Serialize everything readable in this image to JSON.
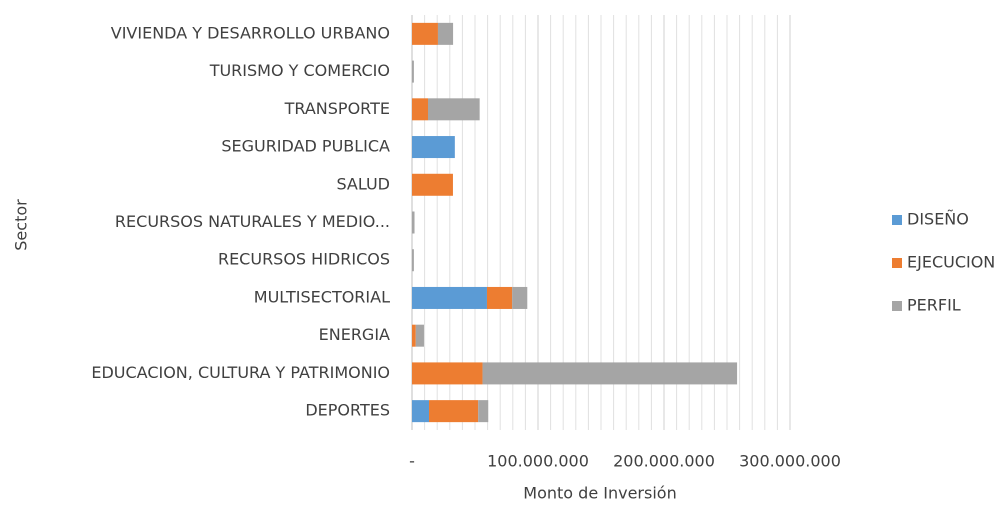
{
  "chart_data": {
    "type": "bar",
    "orientation": "horizontal",
    "stacked": true,
    "xlabel": "Monto de Inversión",
    "ylabel": "Sector",
    "categories": [
      "VIVIENDA Y DESARROLLO URBANO",
      "TURISMO Y COMERCIO",
      "TRANSPORTE",
      "SEGURIDAD PUBLICA",
      "SALUD",
      "RECURSOS NATURALES Y MEDIO...",
      "RECURSOS HIDRICOS",
      "MULTISECTORIAL",
      "ENERGIA",
      "EDUCACION, CULTURA Y PATRIMONIO",
      "DEPORTES"
    ],
    "series": [
      {
        "name": "DISEÑO",
        "color": "#5b9bd5",
        "values": [
          0,
          0,
          0,
          34000000,
          0,
          0,
          0,
          59500000,
          0,
          0,
          13500000
        ]
      },
      {
        "name": "EJECUCION",
        "color": "#ed7d31",
        "values": [
          20600000,
          0,
          12700000,
          0,
          32500000,
          0,
          0,
          20000000,
          3000000,
          56000000,
          39000000
        ]
      },
      {
        "name": "PERFIL",
        "color": "#a5a5a5",
        "values": [
          12000000,
          1500000,
          41000000,
          0,
          0,
          2000000,
          1500000,
          12000000,
          6500000,
          202000000,
          8000000
        ]
      }
    ],
    "xlim": [
      0,
      300000000
    ],
    "xticks": [
      {
        "value": 0,
        "label": "-"
      },
      {
        "value": 100000000,
        "label": "100.000.000"
      },
      {
        "value": 200000000,
        "label": "200.000.000"
      },
      {
        "value": 300000000,
        "label": "300.000.000"
      }
    ],
    "minor_grid_step": 10000000,
    "grid": true,
    "legend": "right"
  }
}
